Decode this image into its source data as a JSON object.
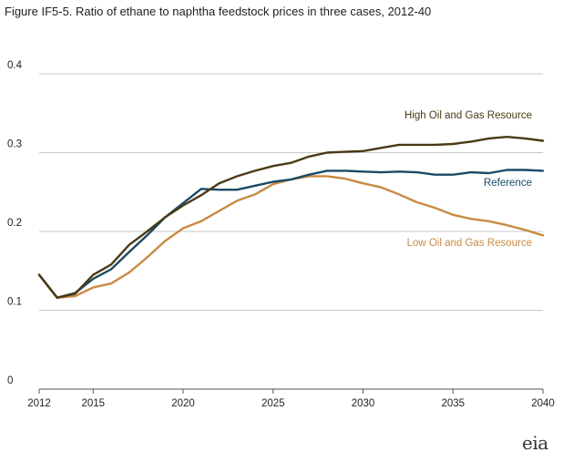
{
  "chart_data": {
    "type": "line",
    "title": "Figure IF5-5. Ratio of ethane to naphtha  feedstock prices in three cases, 2012-40",
    "xlabel": "",
    "ylabel": "",
    "xlim": [
      2012,
      2040
    ],
    "ylim": [
      0,
      0.4
    ],
    "grid": true,
    "x_ticks": [
      "2012",
      "2015",
      "2020",
      "2025",
      "2030",
      "2035",
      "2040"
    ],
    "y_ticks": [
      "0",
      "0.1",
      "0.2",
      "0.3",
      "0.4"
    ],
    "x": [
      2012,
      2013,
      2014,
      2015,
      2016,
      2017,
      2018,
      2019,
      2020,
      2021,
      2022,
      2023,
      2024,
      2025,
      2026,
      2027,
      2028,
      2029,
      2030,
      2031,
      2032,
      2033,
      2034,
      2035,
      2036,
      2037,
      2038,
      2039,
      2040
    ],
    "series": [
      {
        "name": "High Oil and Gas Resource",
        "color": "#4a3a14",
        "values": [
          0.145,
          0.116,
          0.121,
          0.145,
          0.158,
          0.183,
          0.2,
          0.218,
          0.233,
          0.246,
          0.261,
          0.27,
          0.277,
          0.283,
          0.287,
          0.295,
          0.3,
          0.301,
          0.302,
          0.306,
          0.31,
          0.31,
          0.31,
          0.311,
          0.314,
          0.318,
          0.32,
          0.318,
          0.315
        ]
      },
      {
        "name": "Reference",
        "color": "#1b4a66",
        "values": [
          0.145,
          0.116,
          0.122,
          0.14,
          0.152,
          0.174,
          0.195,
          0.218,
          0.236,
          0.254,
          0.253,
          0.253,
          0.258,
          0.263,
          0.266,
          0.272,
          0.277,
          0.277,
          0.276,
          0.275,
          0.276,
          0.275,
          0.272,
          0.272,
          0.275,
          0.274,
          0.278,
          0.278,
          0.277
        ]
      },
      {
        "name": "Low Oil and Gas Resource",
        "color": "#c98a43",
        "values": [
          0.145,
          0.116,
          0.118,
          0.129,
          0.134,
          0.148,
          0.167,
          0.188,
          0.204,
          0.213,
          0.226,
          0.239,
          0.247,
          0.26,
          0.266,
          0.27,
          0.27,
          0.267,
          0.261,
          0.256,
          0.247,
          0.237,
          0.23,
          0.221,
          0.216,
          0.213,
          0.208,
          0.202,
          0.195
        ]
      }
    ]
  },
  "logo_text": "eia"
}
